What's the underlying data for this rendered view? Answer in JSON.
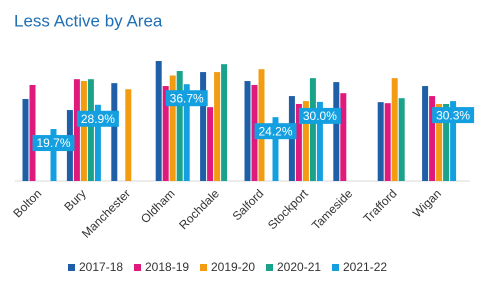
{
  "chart_data": {
    "type": "bar",
    "title": "Less Active by Area",
    "categories": [
      "Bolton",
      "Bury",
      "Manchester",
      "Oldham",
      "Rochdale",
      "Salford",
      "Stockport",
      "Tameside",
      "Trafford",
      "Wigan"
    ],
    "series": [
      {
        "name": "2017-18",
        "color": "#1f5fa8",
        "values": [
          31.1,
          26.9,
          37.1,
          45.5,
          41.3,
          37.9,
          32.2,
          37.5,
          29.9,
          36.0
        ]
      },
      {
        "name": "2018-19",
        "color": "#e0197d",
        "values": [
          36.4,
          38.6,
          null,
          36.0,
          28.0,
          36.4,
          29.2,
          33.3,
          29.5,
          32.2
        ]
      },
      {
        "name": "2019-20",
        "color": "#f39c12",
        "values": [
          null,
          37.9,
          34.8,
          40.0,
          41.3,
          42.4,
          30.3,
          null,
          39.0,
          29.2
        ]
      },
      {
        "name": "2020-21",
        "color": "#1aa38a",
        "values": [
          null,
          38.6,
          null,
          41.7,
          44.3,
          null,
          39.0,
          null,
          31.4,
          29.2
        ]
      },
      {
        "name": "2021-22",
        "color": "#14a0e0",
        "values": [
          19.7,
          28.9,
          null,
          36.7,
          null,
          24.2,
          30.0,
          null,
          null,
          30.3
        ],
        "value_labels": [
          "19.7%",
          "28.9%",
          null,
          "36.7%",
          null,
          "24.2%",
          "30.0%",
          null,
          null,
          "30.3%"
        ]
      }
    ]
  }
}
